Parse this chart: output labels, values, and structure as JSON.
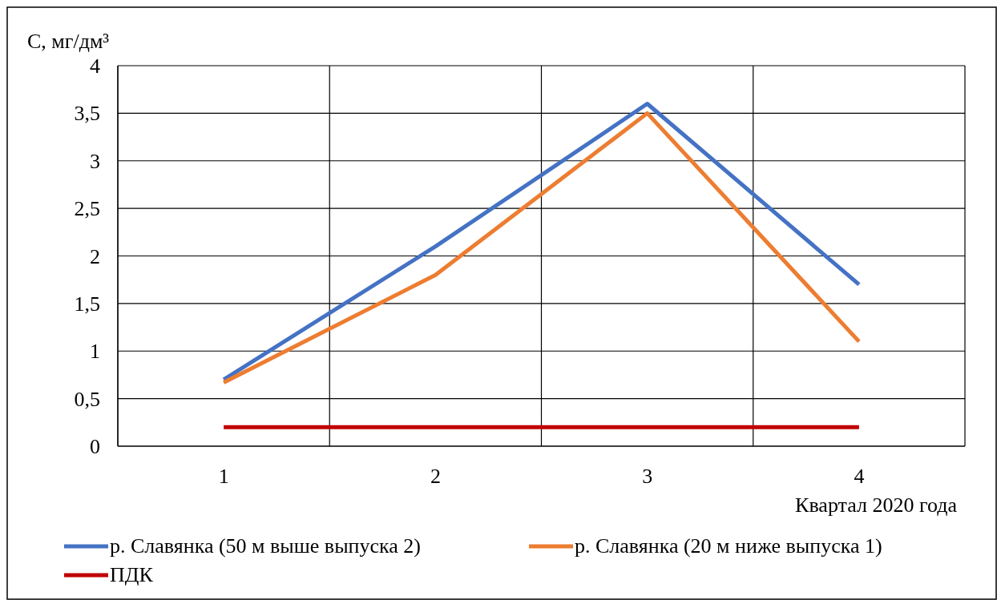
{
  "chart_data": {
    "type": "line",
    "ylabel": "C, мг/дм³",
    "xlabel": "Квартал 2020 года",
    "categories": [
      "1",
      "2",
      "3",
      "4"
    ],
    "ylim": [
      0,
      4
    ],
    "yticks": [
      0,
      {
        "value": 0.5,
        "label": "0,5"
      },
      1,
      {
        "value": 1.5,
        "label": "1,5"
      },
      2,
      {
        "value": 2.5,
        "label": "2,5"
      },
      3,
      {
        "value": 3.5,
        "label": "3,5"
      },
      4
    ],
    "grid": true,
    "legend": "bottom",
    "marker": "none",
    "line_style": "solid",
    "series": [
      {
        "name": "р. Славянка (50 м выше выпуска 2)",
        "color": "#4472c4",
        "values": [
          0.7,
          2.1,
          3.6,
          1.7
        ]
      },
      {
        "name": "р. Славянка (20 м ниже выпуска 1)",
        "color": "#ed7d31",
        "values": [
          0.67,
          1.8,
          3.5,
          1.1
        ]
      },
      {
        "name": "ПДК",
        "color": "#c00000",
        "values": [
          0.2,
          0.2,
          0.2,
          0.2
        ]
      }
    ]
  }
}
